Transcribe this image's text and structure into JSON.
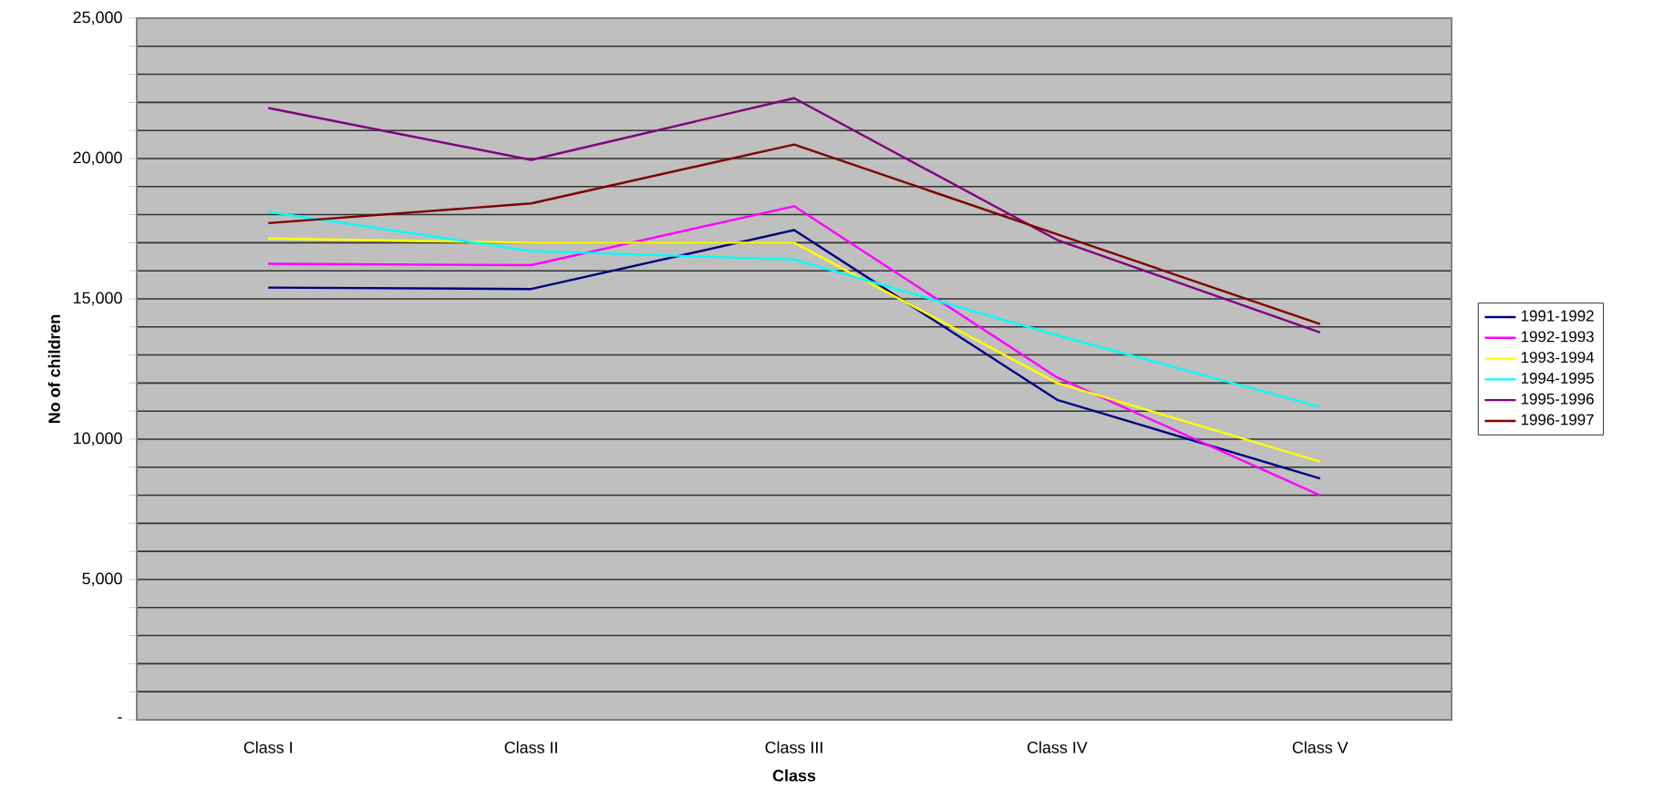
{
  "chart_data": {
    "type": "line",
    "xlabel": "Class",
    "ylabel": "No of children",
    "categories": [
      "Class I",
      "Class II",
      "Class III",
      "Class IV",
      "Class V"
    ],
    "series": [
      {
        "name": "1991-1992",
        "color": "#000080",
        "values": [
          15400,
          15350,
          17450,
          11400,
          8600
        ]
      },
      {
        "name": "1992-1993",
        "color": "#ff00ff",
        "values": [
          16250,
          16200,
          18300,
          12200,
          8000
        ]
      },
      {
        "name": "1993-1994",
        "color": "#ffff00",
        "values": [
          17150,
          17000,
          17000,
          12000,
          9200
        ]
      },
      {
        "name": "1994-1995",
        "color": "#00ffff",
        "values": [
          18100,
          16700,
          16400,
          13700,
          11150
        ]
      },
      {
        "name": "1995-1996",
        "color": "#800080",
        "values": [
          21800,
          19950,
          22150,
          17100,
          13800
        ]
      },
      {
        "name": "1996-1997",
        "color": "#800000",
        "values": [
          17700,
          18400,
          20500,
          17300,
          14100
        ]
      }
    ],
    "ylim": [
      0,
      25000
    ],
    "yticks": [
      {
        "value": 0,
        "label": "-"
      },
      {
        "value": 1000,
        "label": null
      },
      {
        "value": 2000,
        "label": null
      },
      {
        "value": 3000,
        "label": null
      },
      {
        "value": 4000,
        "label": null
      },
      {
        "value": 5000,
        "label": "5,000"
      },
      {
        "value": 6000,
        "label": null
      },
      {
        "value": 7000,
        "label": null
      },
      {
        "value": 8000,
        "label": null
      },
      {
        "value": 9000,
        "label": null
      },
      {
        "value": 10000,
        "label": "10,000"
      },
      {
        "value": 11000,
        "label": null
      },
      {
        "value": 12000,
        "label": null
      },
      {
        "value": 13000,
        "label": null
      },
      {
        "value": 14000,
        "label": null
      },
      {
        "value": 15000,
        "label": "15,000"
      },
      {
        "value": 16000,
        "label": null
      },
      {
        "value": 17000,
        "label": null
      },
      {
        "value": 18000,
        "label": null
      },
      {
        "value": 19000,
        "label": null
      },
      {
        "value": 20000,
        "label": "20,000"
      },
      {
        "value": 21000,
        "label": null
      },
      {
        "value": 22000,
        "label": null
      },
      {
        "value": 23000,
        "label": null
      },
      {
        "value": 24000,
        "label": null
      },
      {
        "value": 25000,
        "label": "25,000"
      }
    ],
    "grid": "y",
    "legend": "right",
    "marker": "none",
    "line_style": "solid"
  }
}
